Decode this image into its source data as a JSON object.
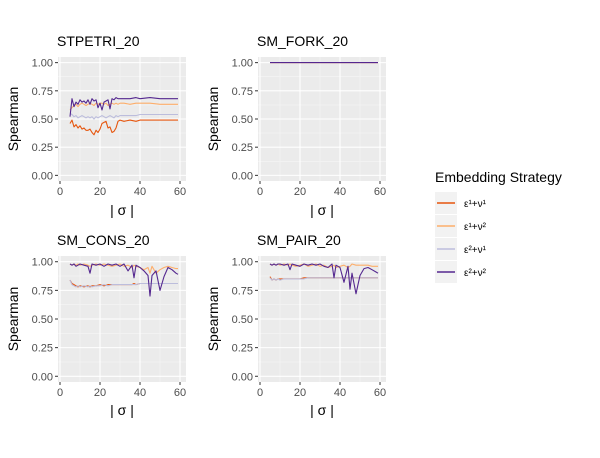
{
  "legend": {
    "title": "Embedding Strategy",
    "entries": [
      {
        "label": "ε¹+ν¹",
        "color": "#e6550d"
      },
      {
        "label": "ε¹+ν²",
        "color": "#fdae6b"
      },
      {
        "label": "ε²+ν¹",
        "color": "#bcbddc"
      },
      {
        "label": "ε²+ν²",
        "color": "#54278f"
      }
    ]
  },
  "chart_data": [
    {
      "type": "line",
      "title": "STPETRI_20",
      "xlabel": "| σ |",
      "ylabel": "Spearman",
      "xlim": [
        -1,
        63
      ],
      "ylim": [
        -0.05,
        1.05
      ],
      "xticks": [
        0,
        20,
        40,
        60
      ],
      "yticks": [
        0.0,
        0.25,
        0.5,
        0.75,
        1.0
      ],
      "ytick_labels": [
        "0.00",
        "0.25",
        "0.50",
        "0.75",
        "1.00"
      ],
      "grid": true,
      "x": [
        5,
        6,
        7,
        8,
        9,
        10,
        11,
        12,
        13,
        14,
        15,
        16,
        17,
        18,
        19,
        20,
        21,
        22,
        23,
        24,
        25,
        26,
        27,
        28,
        29,
        30,
        32,
        35,
        38,
        40,
        45,
        50,
        55,
        59
      ],
      "series": [
        {
          "name": "ε¹+ν¹",
          "values": [
            0.46,
            0.49,
            0.43,
            0.45,
            0.42,
            0.44,
            0.41,
            0.42,
            0.4,
            0.4,
            0.41,
            0.38,
            0.36,
            0.4,
            0.38,
            0.41,
            0.46,
            0.47,
            0.48,
            0.42,
            0.43,
            0.38,
            0.39,
            0.42,
            0.48,
            0.49,
            0.48,
            0.49,
            0.48,
            0.49,
            0.49,
            0.49,
            0.49,
            0.49
          ]
        },
        {
          "name": "ε¹+ν²",
          "values": [
            0.58,
            0.6,
            0.62,
            0.63,
            0.61,
            0.63,
            0.64,
            0.63,
            0.62,
            0.63,
            0.64,
            0.63,
            0.62,
            0.64,
            0.63,
            0.64,
            0.64,
            0.63,
            0.64,
            0.62,
            0.63,
            0.64,
            0.63,
            0.64,
            0.63,
            0.64,
            0.64,
            0.63,
            0.64,
            0.64,
            0.64,
            0.63,
            0.63,
            0.63
          ]
        },
        {
          "name": "ε²+ν¹",
          "values": [
            0.55,
            0.54,
            0.52,
            0.53,
            0.51,
            0.52,
            0.53,
            0.52,
            0.51,
            0.52,
            0.51,
            0.52,
            0.5,
            0.52,
            0.51,
            0.52,
            0.53,
            0.52,
            0.51,
            0.52,
            0.53,
            0.52,
            0.51,
            0.53,
            0.52,
            0.53,
            0.53,
            0.53,
            0.53,
            0.54,
            0.54,
            0.54,
            0.54,
            0.54
          ]
        },
        {
          "name": "ε²+ν²",
          "values": [
            0.52,
            0.68,
            0.61,
            0.65,
            0.63,
            0.67,
            0.65,
            0.66,
            0.64,
            0.67,
            0.63,
            0.68,
            0.66,
            0.67,
            0.6,
            0.64,
            0.58,
            0.65,
            0.66,
            0.67,
            0.59,
            0.68,
            0.67,
            0.69,
            0.68,
            0.68,
            0.68,
            0.68,
            0.69,
            0.68,
            0.69,
            0.68,
            0.68,
            0.68
          ]
        }
      ]
    },
    {
      "type": "line",
      "title": "SM_FORK_20",
      "xlabel": "| σ |",
      "ylabel": "Spearman",
      "xlim": [
        -1,
        63
      ],
      "ylim": [
        -0.05,
        1.05
      ],
      "xticks": [
        0,
        20,
        40,
        60
      ],
      "yticks": [
        0.0,
        0.25,
        0.5,
        0.75,
        1.0
      ],
      "ytick_labels": [
        "0.00",
        "0.25",
        "0.50",
        "0.75",
        "1.00"
      ],
      "grid": true,
      "x": [
        5,
        10,
        20,
        30,
        40,
        50,
        59
      ],
      "series": [
        {
          "name": "ε¹+ν¹",
          "values": [
            1.0,
            1.0,
            1.0,
            1.0,
            1.0,
            1.0,
            1.0
          ]
        },
        {
          "name": "ε¹+ν²",
          "values": [
            1.0,
            1.0,
            1.0,
            1.0,
            1.0,
            1.0,
            1.0
          ]
        },
        {
          "name": "ε²+ν¹",
          "values": [
            1.0,
            1.0,
            1.0,
            1.0,
            1.0,
            1.0,
            1.0
          ]
        },
        {
          "name": "ε²+ν²",
          "values": [
            1.0,
            1.0,
            1.0,
            1.0,
            1.0,
            1.0,
            1.0
          ]
        }
      ]
    },
    {
      "type": "line",
      "title": "SM_CONS_20",
      "xlabel": "| σ |",
      "ylabel": "Spearman",
      "xlim": [
        -1,
        63
      ],
      "ylim": [
        -0.05,
        1.05
      ],
      "xticks": [
        0,
        20,
        40,
        60
      ],
      "yticks": [
        0.0,
        0.25,
        0.5,
        0.75,
        1.0
      ],
      "ytick_labels": [
        "0.00",
        "0.25",
        "0.50",
        "0.75",
        "1.00"
      ],
      "grid": true,
      "x": [
        5,
        6,
        7,
        8,
        9,
        10,
        12,
        14,
        15,
        16,
        18,
        20,
        22,
        24,
        26,
        28,
        30,
        32,
        34,
        36,
        37,
        38,
        40,
        42,
        44,
        45,
        46,
        48,
        50,
        52,
        54,
        56,
        58,
        59
      ],
      "series": [
        {
          "name": "ε¹+ν¹",
          "values": [
            0.84,
            0.81,
            0.8,
            0.79,
            0.78,
            0.79,
            0.78,
            0.79,
            0.78,
            0.79,
            0.79,
            0.8,
            0.79,
            0.8,
            0.8,
            0.8,
            0.8,
            0.8,
            0.8,
            0.8,
            0.81,
            0.8,
            0.81,
            0.81,
            0.81,
            0.81,
            0.81,
            0.81,
            0.81,
            0.81,
            0.81,
            0.81,
            0.81,
            0.81
          ]
        },
        {
          "name": "ε¹+ν²",
          "values": [
            0.98,
            0.97,
            0.98,
            0.97,
            0.98,
            0.97,
            0.98,
            0.97,
            0.96,
            0.97,
            0.98,
            0.97,
            0.98,
            0.97,
            0.96,
            0.97,
            0.98,
            0.96,
            0.97,
            0.95,
            0.97,
            0.96,
            0.95,
            0.93,
            0.95,
            0.9,
            0.96,
            0.9,
            0.93,
            0.95,
            0.96,
            0.95,
            0.94,
            0.94
          ]
        },
        {
          "name": "ε²+ν¹",
          "values": [
            0.84,
            0.8,
            0.79,
            0.78,
            0.79,
            0.78,
            0.79,
            0.78,
            0.79,
            0.78,
            0.79,
            0.79,
            0.8,
            0.79,
            0.8,
            0.8,
            0.8,
            0.8,
            0.8,
            0.8,
            0.8,
            0.8,
            0.81,
            0.81,
            0.81,
            0.81,
            0.81,
            0.81,
            0.81,
            0.81,
            0.81,
            0.81,
            0.81,
            0.81
          ]
        },
        {
          "name": "ε²+ν²",
          "values": [
            0.98,
            0.97,
            0.98,
            0.96,
            0.97,
            0.98,
            0.97,
            0.96,
            0.9,
            0.98,
            0.97,
            0.98,
            0.96,
            0.98,
            0.97,
            0.98,
            0.96,
            0.98,
            0.92,
            0.97,
            0.86,
            0.97,
            0.95,
            0.92,
            0.88,
            0.7,
            0.88,
            0.92,
            0.75,
            0.87,
            0.95,
            0.93,
            0.9,
            0.89
          ]
        }
      ]
    },
    {
      "type": "line",
      "title": "SM_PAIR_20",
      "xlabel": "| σ |",
      "ylabel": "Spearman",
      "xlim": [
        -1,
        63
      ],
      "ylim": [
        -0.05,
        1.05
      ],
      "xticks": [
        0,
        20,
        40,
        60
      ],
      "yticks": [
        0.0,
        0.25,
        0.5,
        0.75,
        1.0
      ],
      "ytick_labels": [
        "0.00",
        "0.25",
        "0.50",
        "0.75",
        "1.00"
      ],
      "grid": true,
      "x": [
        5,
        6,
        7,
        8,
        9,
        10,
        12,
        14,
        15,
        16,
        18,
        20,
        22,
        24,
        26,
        28,
        30,
        32,
        34,
        36,
        37,
        38,
        40,
        42,
        44,
        45,
        46,
        48,
        50,
        52,
        54,
        56,
        58,
        59
      ],
      "series": [
        {
          "name": "ε¹+ν¹",
          "values": [
            0.87,
            0.84,
            0.85,
            0.84,
            0.85,
            0.85,
            0.85,
            0.85,
            0.85,
            0.85,
            0.85,
            0.85,
            0.86,
            0.86,
            0.86,
            0.86,
            0.86,
            0.86,
            0.86,
            0.86,
            0.86,
            0.86,
            0.86,
            0.86,
            0.86,
            0.86,
            0.86,
            0.86,
            0.86,
            0.86,
            0.86,
            0.86,
            0.86,
            0.86
          ]
        },
        {
          "name": "ε¹+ν²",
          "values": [
            0.98,
            0.97,
            0.98,
            0.97,
            0.98,
            0.97,
            0.98,
            0.97,
            0.98,
            0.97,
            0.96,
            0.97,
            0.98,
            0.96,
            0.97,
            0.98,
            0.96,
            0.97,
            0.95,
            0.96,
            0.97,
            0.95,
            0.96,
            0.97,
            0.95,
            0.96,
            0.98,
            0.97,
            0.97,
            0.97,
            0.97,
            0.96,
            0.96,
            0.96
          ]
        },
        {
          "name": "ε²+ν¹",
          "values": [
            0.86,
            0.84,
            0.85,
            0.84,
            0.85,
            0.84,
            0.85,
            0.85,
            0.85,
            0.85,
            0.85,
            0.85,
            0.85,
            0.86,
            0.86,
            0.86,
            0.86,
            0.86,
            0.86,
            0.86,
            0.86,
            0.86,
            0.86,
            0.86,
            0.86,
            0.86,
            0.86,
            0.86,
            0.86,
            0.86,
            0.86,
            0.86,
            0.86,
            0.86
          ]
        },
        {
          "name": "ε²+ν²",
          "values": [
            0.98,
            0.97,
            0.98,
            0.97,
            0.98,
            0.98,
            0.97,
            0.98,
            0.93,
            0.98,
            0.97,
            0.96,
            0.98,
            0.97,
            0.98,
            0.97,
            0.98,
            0.96,
            0.95,
            0.98,
            0.86,
            0.97,
            0.95,
            0.82,
            0.96,
            0.76,
            0.9,
            0.72,
            0.88,
            0.94,
            0.95,
            0.93,
            0.91,
            0.9
          ]
        }
      ]
    }
  ]
}
